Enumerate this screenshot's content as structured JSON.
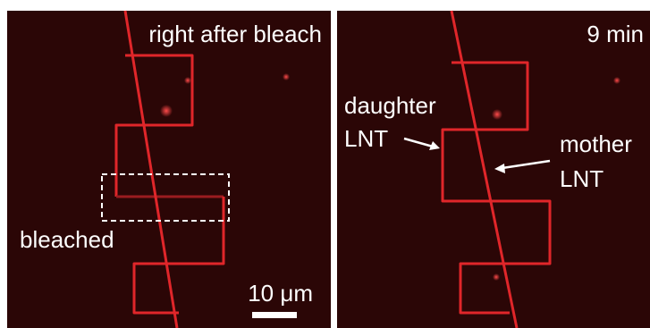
{
  "panels": [
    {
      "label": "right after bleach",
      "annotation": "bleached",
      "scale_bar": "10 μm"
    },
    {
      "label": "9 min",
      "annotations": [
        {
          "lines": [
            "daughter",
            "LNT"
          ]
        },
        {
          "lines": [
            "mother",
            "LNT"
          ]
        }
      ]
    }
  ]
}
